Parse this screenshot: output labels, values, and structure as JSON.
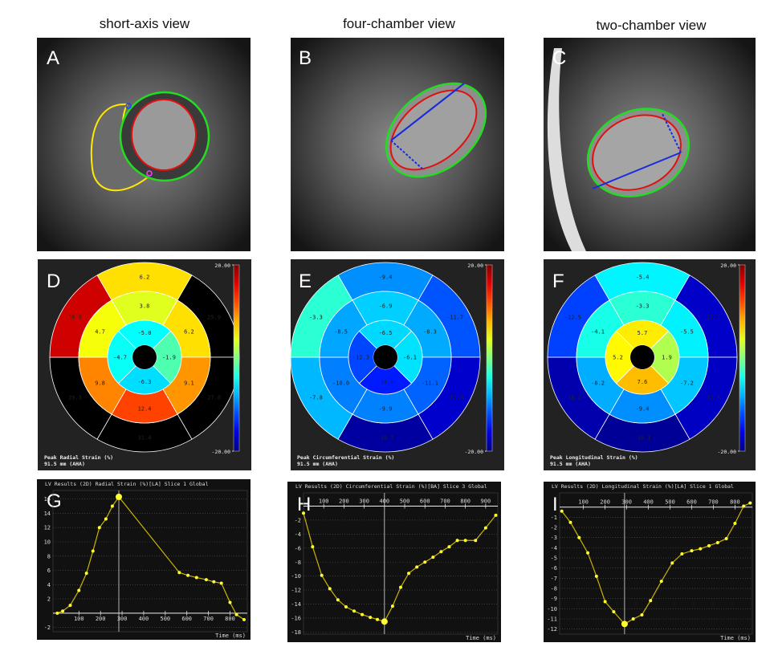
{
  "column_titles": [
    "short-axis view",
    "four-chamber view",
    "two-chamber view"
  ],
  "panel_labels": [
    "A",
    "B",
    "C",
    "D",
    "E",
    "F",
    "G",
    "H",
    "I"
  ],
  "chart_data": [
    {
      "type": "bullseye",
      "title": "Peak Radial Strain (%)",
      "subtitle": "91.5 mm (AHA)",
      "rings": [
        [
          6.2,
          25.9,
          27.8,
          31.4,
          29.3,
          16.9
        ],
        [
          3.8,
          6.2,
          9.1,
          12.4,
          9.8,
          4.7
        ],
        [
          -5,
          -1.9,
          -6.3,
          -4.7
        ]
      ],
      "value_labels": [
        [
          "6.2",
          "25.9",
          "27.8",
          "31.4",
          "29.3",
          "16.9"
        ],
        [
          "3.8",
          "6.2",
          "9.1",
          "12.4",
          "9.8",
          "4.7"
        ],
        [
          "-5.0",
          "-1.9",
          "-6.3",
          "-4.7"
        ]
      ],
      "colorbar_lim": [
        -20,
        20
      ],
      "colorbar_ticks": [
        {
          "value": 20,
          "label": "20.00"
        },
        {
          "value": -20,
          "label": "-20.00"
        }
      ]
    },
    {
      "type": "bullseye",
      "title": "Peak Circumferential Strain (%)",
      "subtitle": "91.5 mm (AHA)",
      "rings": [
        [
          -9.4,
          -11.7,
          -17,
          -18.7,
          -7.8,
          -3.3
        ],
        [
          -6.9,
          -8.3,
          -11.1,
          -9.9,
          -10,
          -8.5
        ],
        [
          -6.5,
          -6.1,
          -14,
          -12.3
        ]
      ],
      "value_labels": [
        [
          "-9.4",
          "-11.7",
          "-17.0",
          "-18.7",
          "-7.8",
          "-3.3"
        ],
        [
          "-6.9",
          "-8.3",
          "-11.1",
          "-9.9",
          "-10.0",
          "-8.5"
        ],
        [
          "-6.5",
          "-6.1",
          "-14.0",
          "-12.3"
        ]
      ],
      "colorbar_lim": [
        -20,
        20
      ],
      "colorbar_ticks": [
        {
          "value": 20,
          "label": "20.00"
        },
        {
          "value": -20,
          "label": "-20.00"
        }
      ]
    },
    {
      "type": "bullseye",
      "title": "Peak Longitudinal Strain (%)",
      "subtitle": "91.5 mm (AHA)",
      "rings": [
        [
          -5.4,
          -17.1,
          -17.4,
          -19.1,
          -18.2,
          -12.5
        ],
        [
          -3.3,
          -5.5,
          -7.2,
          -9.4,
          -8.2,
          -4.1
        ],
        [
          5.7,
          1.9,
          7.6,
          5.2
        ]
      ],
      "value_labels": [
        [
          "-5.4",
          "-17.1",
          "-17.4",
          "-19.1",
          "-18.2",
          "-12.5"
        ],
        [
          "-3.3",
          "-5.5",
          "-7.2",
          "-9.4",
          "-8.2",
          "-4.1"
        ],
        [
          "5.7",
          "1.9",
          "7.6",
          "5.2"
        ]
      ],
      "colorbar_lim": [
        -20,
        20
      ],
      "colorbar_ticks": [
        {
          "value": 20,
          "label": "20.00"
        },
        {
          "value": -20,
          "label": "-20.00"
        }
      ]
    },
    {
      "type": "line",
      "title": "LV Results (2D) Radial Strain (%)[LA] Slice 1 Global",
      "x_label": "Time (ms)",
      "color": "#ffff33",
      "x": [
        0,
        25,
        60,
        100,
        135,
        165,
        195,
        225,
        255,
        285,
        565,
        605,
        645,
        690,
        725,
        760,
        800,
        830,
        865
      ],
      "values": [
        0,
        0.3,
        1.1,
        3.2,
        5.6,
        8.7,
        12,
        13.2,
        15,
        16.3,
        5.7,
        5.3,
        5,
        4.7,
        4.4,
        4.2,
        1.5,
        -0.2,
        -0.9
      ],
      "xlim": [
        -20,
        880
      ],
      "ylim": [
        -2.6,
        17.2
      ],
      "xticks": [
        100,
        200,
        300,
        400,
        500,
        600,
        700,
        800
      ],
      "yticks": [
        -2,
        2,
        4,
        6,
        8,
        10,
        12,
        14,
        16
      ]
    },
    {
      "type": "line",
      "title": "LV Results (2D) Circumferential Strain (%)[BA] Slice 3 Global",
      "x_label": "Time (ms)",
      "color": "#ffff33",
      "x": [
        0,
        45,
        90,
        130,
        170,
        210,
        250,
        290,
        330,
        365,
        400,
        440,
        480,
        520,
        560,
        600,
        640,
        680,
        720,
        760,
        800,
        850,
        900,
        950
      ],
      "values": [
        -1,
        -5.8,
        -9.9,
        -11.8,
        -13.4,
        -14.4,
        -15,
        -15.5,
        -15.9,
        -16.2,
        -16.5,
        -14.3,
        -11.6,
        -9.6,
        -8.7,
        -8,
        -7.3,
        -6.5,
        -5.8,
        -4.9,
        -4.9,
        -4.9,
        -3.1,
        -1.3
      ],
      "xlim": [
        0,
        960
      ],
      "ylim": [
        -18.3,
        1.9
      ],
      "xticks": [
        100,
        200,
        300,
        400,
        500,
        600,
        700,
        800,
        900
      ],
      "yticks": [
        -2,
        -4,
        -6,
        -8,
        -10,
        -12,
        -14,
        -16,
        -18
      ]
    },
    {
      "type": "line",
      "title": "LV Results (2D) Longitudinal Strain (%)[LA] Slice 1 Global",
      "x_label": "Time (ms)",
      "color": "#ffff33",
      "x": [
        0,
        40,
        80,
        120,
        160,
        200,
        240,
        290,
        330,
        370,
        410,
        460,
        510,
        555,
        600,
        640,
        680,
        720,
        760,
        800,
        840,
        870
      ],
      "values": [
        -0.4,
        -1.5,
        -3,
        -4.5,
        -6.8,
        -9.3,
        -10.3,
        -11.5,
        -11,
        -10.6,
        -9.2,
        -7.3,
        -5.5,
        -4.6,
        -4.3,
        -4.1,
        -3.8,
        -3.5,
        -3.1,
        -1.6,
        0.1,
        0.4
      ],
      "xlim": [
        -10,
        880
      ],
      "ylim": [
        -12.5,
        1.4
      ],
      "xticks": [
        100,
        200,
        300,
        400,
        500,
        600,
        700,
        800
      ],
      "yticks": [
        -1,
        -2,
        -3,
        -4,
        -5,
        -6,
        -7,
        -8,
        -9,
        -10,
        -11,
        -12
      ]
    }
  ]
}
